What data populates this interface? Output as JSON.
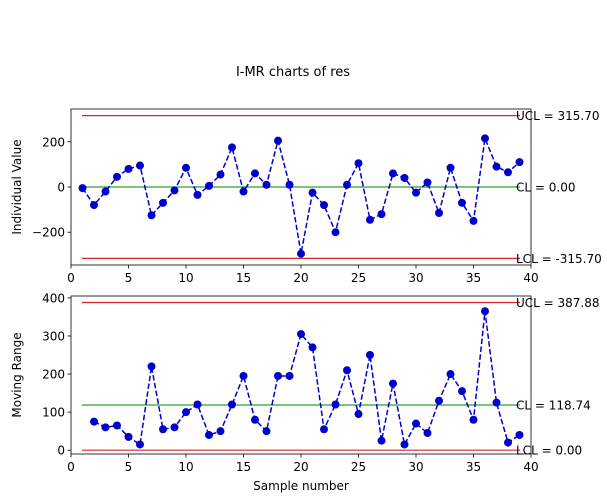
{
  "title": "I-MR charts of res",
  "chart_data": [
    {
      "type": "line",
      "name": "individuals",
      "ylabel": "Individual Value",
      "xlabel": "",
      "xlim": [
        0,
        40
      ],
      "ylim": [
        -345,
        345
      ],
      "xticks": [
        0,
        5,
        10,
        15,
        20,
        25,
        30,
        35,
        40
      ],
      "yticks": [
        -200,
        0,
        200
      ],
      "x": [
        1,
        2,
        3,
        4,
        5,
        6,
        7,
        8,
        9,
        10,
        11,
        12,
        13,
        14,
        15,
        16,
        17,
        18,
        19,
        20,
        21,
        22,
        23,
        24,
        25,
        26,
        27,
        28,
        29,
        30,
        31,
        32,
        33,
        34,
        35,
        36,
        37,
        38,
        39
      ],
      "values": [
        -5,
        -80,
        -20,
        45,
        80,
        95,
        -125,
        -70,
        -15,
        85,
        -35,
        5,
        55,
        175,
        -20,
        60,
        10,
        205,
        10,
        -295,
        -25,
        -80,
        -200,
        10,
        105,
        -145,
        -120,
        60,
        40,
        -25,
        20,
        -115,
        85,
        -70,
        -150,
        215,
        90,
        65,
        110
      ],
      "limits": [
        {
          "name": "UCL",
          "value": 315.7,
          "label": "UCL = 315.70",
          "color": "#d62728"
        },
        {
          "name": "CL",
          "value": 0.0,
          "label": "CL = 0.00",
          "color": "#2ca02c"
        },
        {
          "name": "LCL",
          "value": -315.7,
          "label": "LCL = -315.70",
          "color": "#d62728"
        }
      ],
      "series_color": "#0000cc"
    },
    {
      "type": "line",
      "name": "moving-range",
      "ylabel": "Moving Range",
      "xlabel": "Sample number",
      "xlim": [
        0,
        40
      ],
      "ylim": [
        -10,
        405
      ],
      "xticks": [
        0,
        5,
        10,
        15,
        20,
        25,
        30,
        35,
        40
      ],
      "yticks": [
        0,
        100,
        200,
        300,
        400
      ],
      "x": [
        2,
        3,
        4,
        5,
        6,
        7,
        8,
        9,
        10,
        11,
        12,
        13,
        14,
        15,
        16,
        17,
        18,
        19,
        20,
        21,
        22,
        23,
        24,
        25,
        26,
        27,
        28,
        29,
        30,
        31,
        32,
        33,
        34,
        35,
        36,
        37,
        38,
        39
      ],
      "values": [
        75,
        60,
        65,
        35,
        15,
        220,
        55,
        60,
        100,
        120,
        40,
        50,
        120,
        195,
        80,
        50,
        195,
        195,
        305,
        270,
        55,
        120,
        210,
        95,
        250,
        25,
        175,
        15,
        70,
        45,
        130,
        200,
        155,
        80,
        365,
        125,
        20,
        40
      ],
      "limits": [
        {
          "name": "UCL",
          "value": 387.88,
          "label": "UCL = 387.88",
          "color": "#d62728"
        },
        {
          "name": "CL",
          "value": 118.74,
          "label": "CL = 118.74",
          "color": "#2ca02c"
        },
        {
          "name": "LCL",
          "value": 0.0,
          "label": "LCL = 0.00",
          "color": "#d62728"
        }
      ],
      "series_color": "#0000cc"
    }
  ]
}
